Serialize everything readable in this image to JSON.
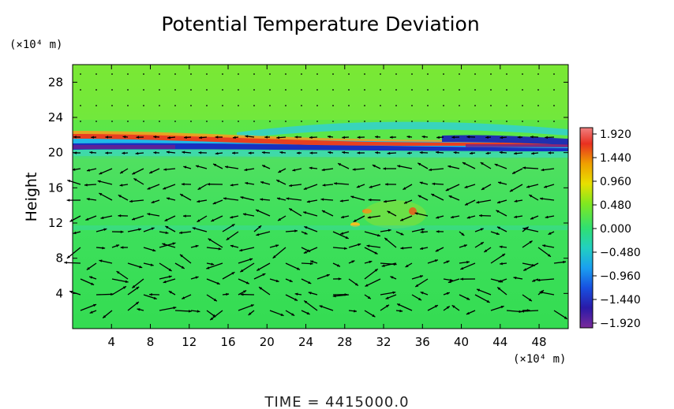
{
  "chart_data": {
    "type": "heatmap",
    "title": "Potential Temperature Deviation",
    "ylabel": "Height",
    "x_unit": "(×10⁴ m)",
    "y_unit": "(×10⁴ m)",
    "x_ticks": [
      4,
      8,
      12,
      16,
      20,
      24,
      28,
      32,
      36,
      40,
      44,
      48
    ],
    "y_ticks": [
      4,
      8,
      12,
      16,
      20,
      24,
      28
    ],
    "x_labels": [
      "4",
      "8",
      "12",
      "16",
      "20",
      "24",
      "28",
      "32",
      "36",
      "40",
      "44",
      "48"
    ],
    "y_labels": [
      "4",
      "8",
      "12",
      "16",
      "20",
      "24",
      "28"
    ],
    "xlim": [
      0,
      51
    ],
    "ylim": [
      0,
      30
    ],
    "colorbar": {
      "ticks": [
        1.92,
        1.44,
        0.96,
        0.48,
        0.0,
        -0.48,
        -0.96,
        -1.44,
        -1.92
      ],
      "labels": [
        "1.920",
        "1.440",
        "0.960",
        "0.480",
        "0.000",
        "−0.480",
        "−0.960",
        "−1.440",
        "−1.920"
      ],
      "range": [
        -1.92,
        1.92
      ]
    },
    "overlay": "wind vectors",
    "footer": "TIME = 4415000.0"
  }
}
